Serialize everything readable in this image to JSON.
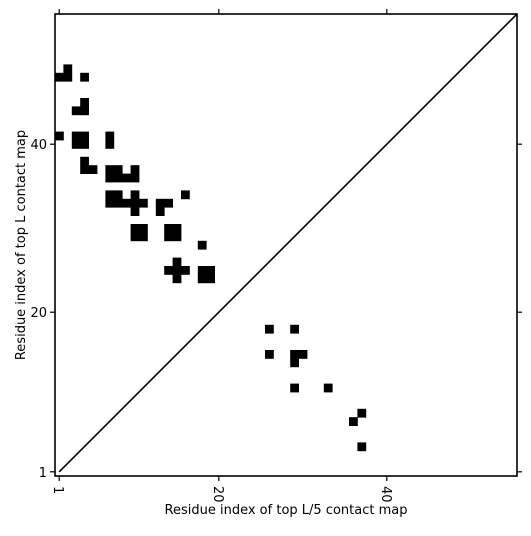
{
  "chart_data": {
    "type": "heatmap",
    "title": "",
    "xlabel": "Residue index of top L/5 contact map",
    "ylabel": "Residue index of top L contact map",
    "xlim": [
      0.5,
      55.5
    ],
    "ylim": [
      0.5,
      55.5
    ],
    "x_ticks": [
      1,
      20,
      40
    ],
    "y_ticks": [
      1,
      20,
      40
    ],
    "grid": false,
    "diagonal": true,
    "color": "#000000",
    "upper_contacts": [
      [
        1,
        48
      ],
      [
        2,
        48
      ],
      [
        2,
        49
      ],
      [
        4,
        48
      ],
      [
        3,
        44
      ],
      [
        4,
        44
      ],
      [
        4,
        45
      ],
      [
        1,
        41
      ],
      [
        3,
        40
      ],
      [
        3,
        41
      ],
      [
        4,
        40
      ],
      [
        4,
        41
      ],
      [
        7,
        40
      ],
      [
        7,
        41
      ],
      [
        4,
        37
      ],
      [
        4,
        38
      ],
      [
        5,
        37
      ],
      [
        7,
        36
      ],
      [
        7,
        37
      ],
      [
        8,
        36
      ],
      [
        8,
        37
      ],
      [
        9,
        36
      ],
      [
        10,
        36
      ],
      [
        10,
        37
      ],
      [
        7,
        33
      ],
      [
        7,
        34
      ],
      [
        8,
        33
      ],
      [
        8,
        34
      ],
      [
        9,
        33
      ],
      [
        10,
        32
      ],
      [
        10,
        33
      ],
      [
        10,
        34
      ],
      [
        11,
        33
      ],
      [
        13,
        32
      ],
      [
        13,
        33
      ],
      [
        14,
        33
      ],
      [
        16,
        34
      ],
      [
        10,
        29
      ],
      [
        10,
        30
      ],
      [
        11,
        29
      ],
      [
        11,
        30
      ],
      [
        14,
        29
      ],
      [
        14,
        30
      ],
      [
        15,
        29
      ],
      [
        15,
        30
      ],
      [
        18,
        28
      ],
      [
        14,
        25
      ],
      [
        15,
        24
      ],
      [
        15,
        25
      ],
      [
        15,
        26
      ],
      [
        16,
        25
      ],
      [
        18,
        24
      ],
      [
        18,
        25
      ],
      [
        19,
        24
      ],
      [
        19,
        25
      ]
    ],
    "lower_contacts": [
      [
        26,
        18
      ],
      [
        29,
        18
      ],
      [
        26,
        15
      ],
      [
        29,
        14
      ],
      [
        29,
        15
      ],
      [
        30,
        15
      ],
      [
        29,
        11
      ],
      [
        33,
        11
      ],
      [
        36,
        7
      ],
      [
        37,
        8
      ],
      [
        37,
        4
      ]
    ]
  }
}
